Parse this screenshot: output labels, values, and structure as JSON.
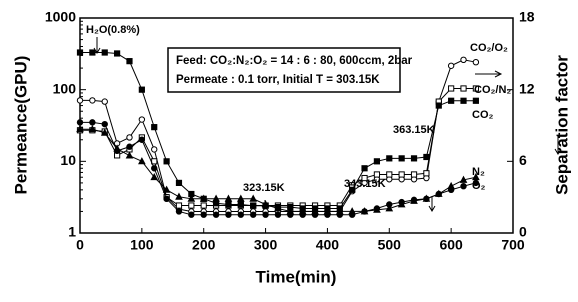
{
  "chart_data": {
    "type": "line",
    "xlabel": "Time(min)",
    "ylabel": "Permeance(GPU)",
    "y2label": "Separation factor",
    "log_y": true,
    "xlim": [
      0,
      700
    ],
    "xticks": [
      0,
      100,
      200,
      300,
      400,
      500,
      600,
      700
    ],
    "ylim": [
      1,
      1000
    ],
    "yticks": [
      1,
      10,
      100,
      1000
    ],
    "y2lim": [
      0,
      18
    ],
    "y2ticks": [
      0,
      6,
      12,
      18
    ],
    "x": [
      0,
      20,
      40,
      60,
      80,
      100,
      120,
      140,
      160,
      180,
      200,
      220,
      240,
      260,
      280,
      300,
      320,
      340,
      360,
      380,
      400,
      420,
      440,
      460,
      480,
      500,
      520,
      540,
      560,
      580,
      600,
      620,
      640
    ],
    "series": [
      {
        "name": "CO₂/O₂",
        "color": "#000000",
        "marker": "circle-open",
        "axis": "y2",
        "values": [
          11.1,
          11.1,
          11.0,
          7.5,
          8.0,
          9.5,
          7.0,
          3.0,
          2.0,
          1.8,
          1.8,
          1.8,
          1.8,
          1.8,
          1.8,
          1.8,
          1.8,
          1.8,
          1.8,
          1.8,
          1.8,
          1.8,
          3.5,
          4.2,
          4.5,
          4.5,
          4.5,
          4.5,
          4.6,
          11.0,
          14.0,
          14.5,
          14.3
        ]
      },
      {
        "name": "CO₂/N₂",
        "color": "#000000",
        "marker": "square-open",
        "axis": "y2",
        "values": [
          8.6,
          8.6,
          8.5,
          6.5,
          7.0,
          8.0,
          6.0,
          3.0,
          2.3,
          2.3,
          2.3,
          2.3,
          2.3,
          2.3,
          2.3,
          2.3,
          2.3,
          2.3,
          2.3,
          2.3,
          2.3,
          2.3,
          4.0,
          4.6,
          4.9,
          4.9,
          4.9,
          4.9,
          5.0,
          11.0,
          12.1,
          12.1,
          12.1
        ]
      },
      {
        "name": "CO₂",
        "color": "#000000",
        "marker": "square-filled",
        "values": [
          330,
          330,
          330,
          320,
          250,
          100,
          30,
          10,
          5,
          3.5,
          3,
          2.6,
          2.5,
          2.5,
          2.4,
          2.4,
          2.3,
          2.3,
          2.2,
          2.2,
          2.2,
          2.2,
          4,
          8,
          10,
          11,
          11,
          11,
          11.5,
          60,
          70,
          70,
          70
        ]
      },
      {
        "name": "N₂",
        "color": "#000000",
        "marker": "triangle-filled",
        "values": [
          28,
          28,
          25,
          15,
          12,
          10,
          6,
          4,
          3.2,
          3,
          3,
          3,
          3,
          3,
          3,
          2.5,
          2.2,
          2,
          2,
          2,
          2,
          2,
          2,
          2,
          2.1,
          2.2,
          2.5,
          2.8,
          3,
          3.5,
          4.5,
          5.5,
          6
        ]
      },
      {
        "name": "O₂",
        "color": "#000000",
        "marker": "circle-filled",
        "values": [
          35,
          35,
          33,
          14,
          16,
          20,
          8,
          3,
          2,
          1.8,
          1.8,
          1.8,
          1.8,
          1.8,
          1.8,
          1.8,
          1.8,
          1.8,
          1.8,
          1.8,
          1.8,
          1.8,
          1.8,
          2,
          2.2,
          2.5,
          2.7,
          2.9,
          3,
          3.5,
          4,
          4.5,
          5
        ]
      }
    ],
    "annotations": [
      "H₂O(0.8%)",
      "323.15K",
      "343.15K",
      "363.15K"
    ],
    "note_box": [
      "Feed: CO₂:N₂:O₂ = 14 : 6 : 80, 600ccm, 2bar",
      "Permeate : 0.1 torr, Initial T = 303.15K"
    ]
  }
}
